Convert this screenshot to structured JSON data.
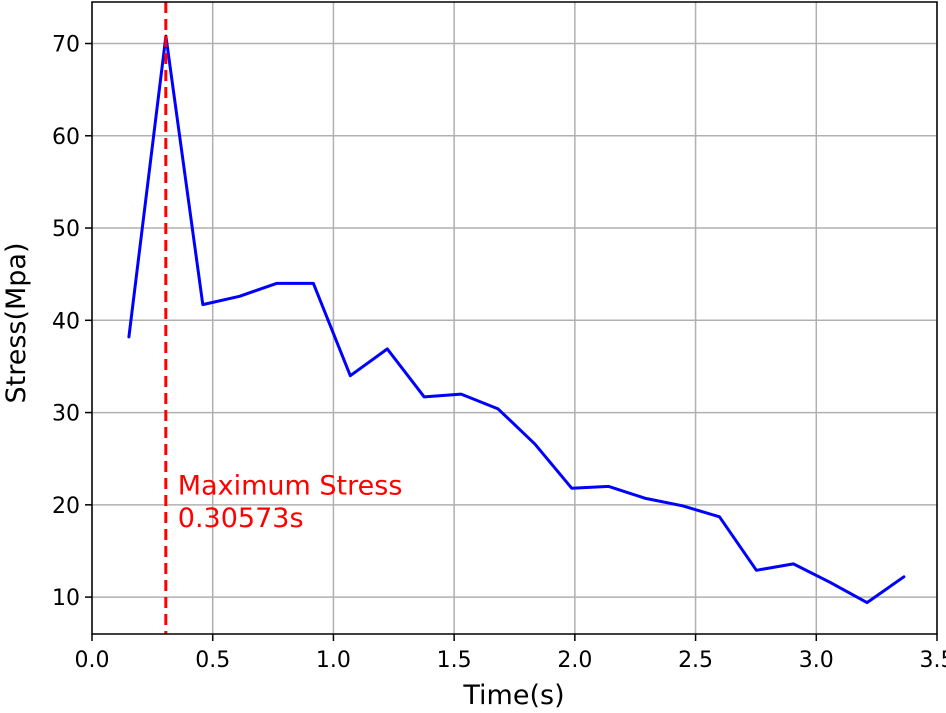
{
  "chart_data": {
    "type": "line",
    "xlabel": "Time(s)",
    "ylabel": "Stress(Mpa)",
    "xlim": [
      0.0,
      3.5
    ],
    "ylim": [
      6.0,
      74.5
    ],
    "xticks": [
      0.0,
      0.5,
      1.0,
      1.5,
      2.0,
      2.5,
      3.0,
      3.5
    ],
    "xtick_labels": [
      "0.0",
      "0.5",
      "1.0",
      "1.5",
      "2.0",
      "2.5",
      "3.0",
      "3.5"
    ],
    "yticks": [
      10,
      20,
      30,
      40,
      50,
      60,
      70
    ],
    "ytick_labels": [
      "10",
      "20",
      "30",
      "40",
      "50",
      "60",
      "70"
    ],
    "grid": true,
    "series": [
      {
        "color": "#0000ff",
        "x": [
          0.153,
          0.306,
          0.459,
          0.611,
          0.764,
          0.917,
          1.07,
          1.223,
          1.376,
          1.529,
          1.682,
          1.834,
          1.987,
          2.14,
          2.293,
          2.446,
          2.599,
          2.752,
          2.905,
          3.057,
          3.21,
          3.363
        ],
        "y": [
          38.2,
          70.8,
          41.7,
          42.6,
          44.0,
          44.0,
          34.0,
          36.9,
          31.7,
          32.0,
          30.4,
          26.6,
          21.8,
          22.0,
          20.7,
          19.9,
          18.7,
          12.9,
          13.6,
          11.6,
          9.4,
          12.2
        ]
      }
    ],
    "annotations": [
      {
        "type": "vline",
        "x": 0.30573,
        "color": "#ff0000",
        "style": "dashed",
        "label_lines": [
          "Maximum Stress",
          "0.30573s"
        ]
      }
    ]
  }
}
